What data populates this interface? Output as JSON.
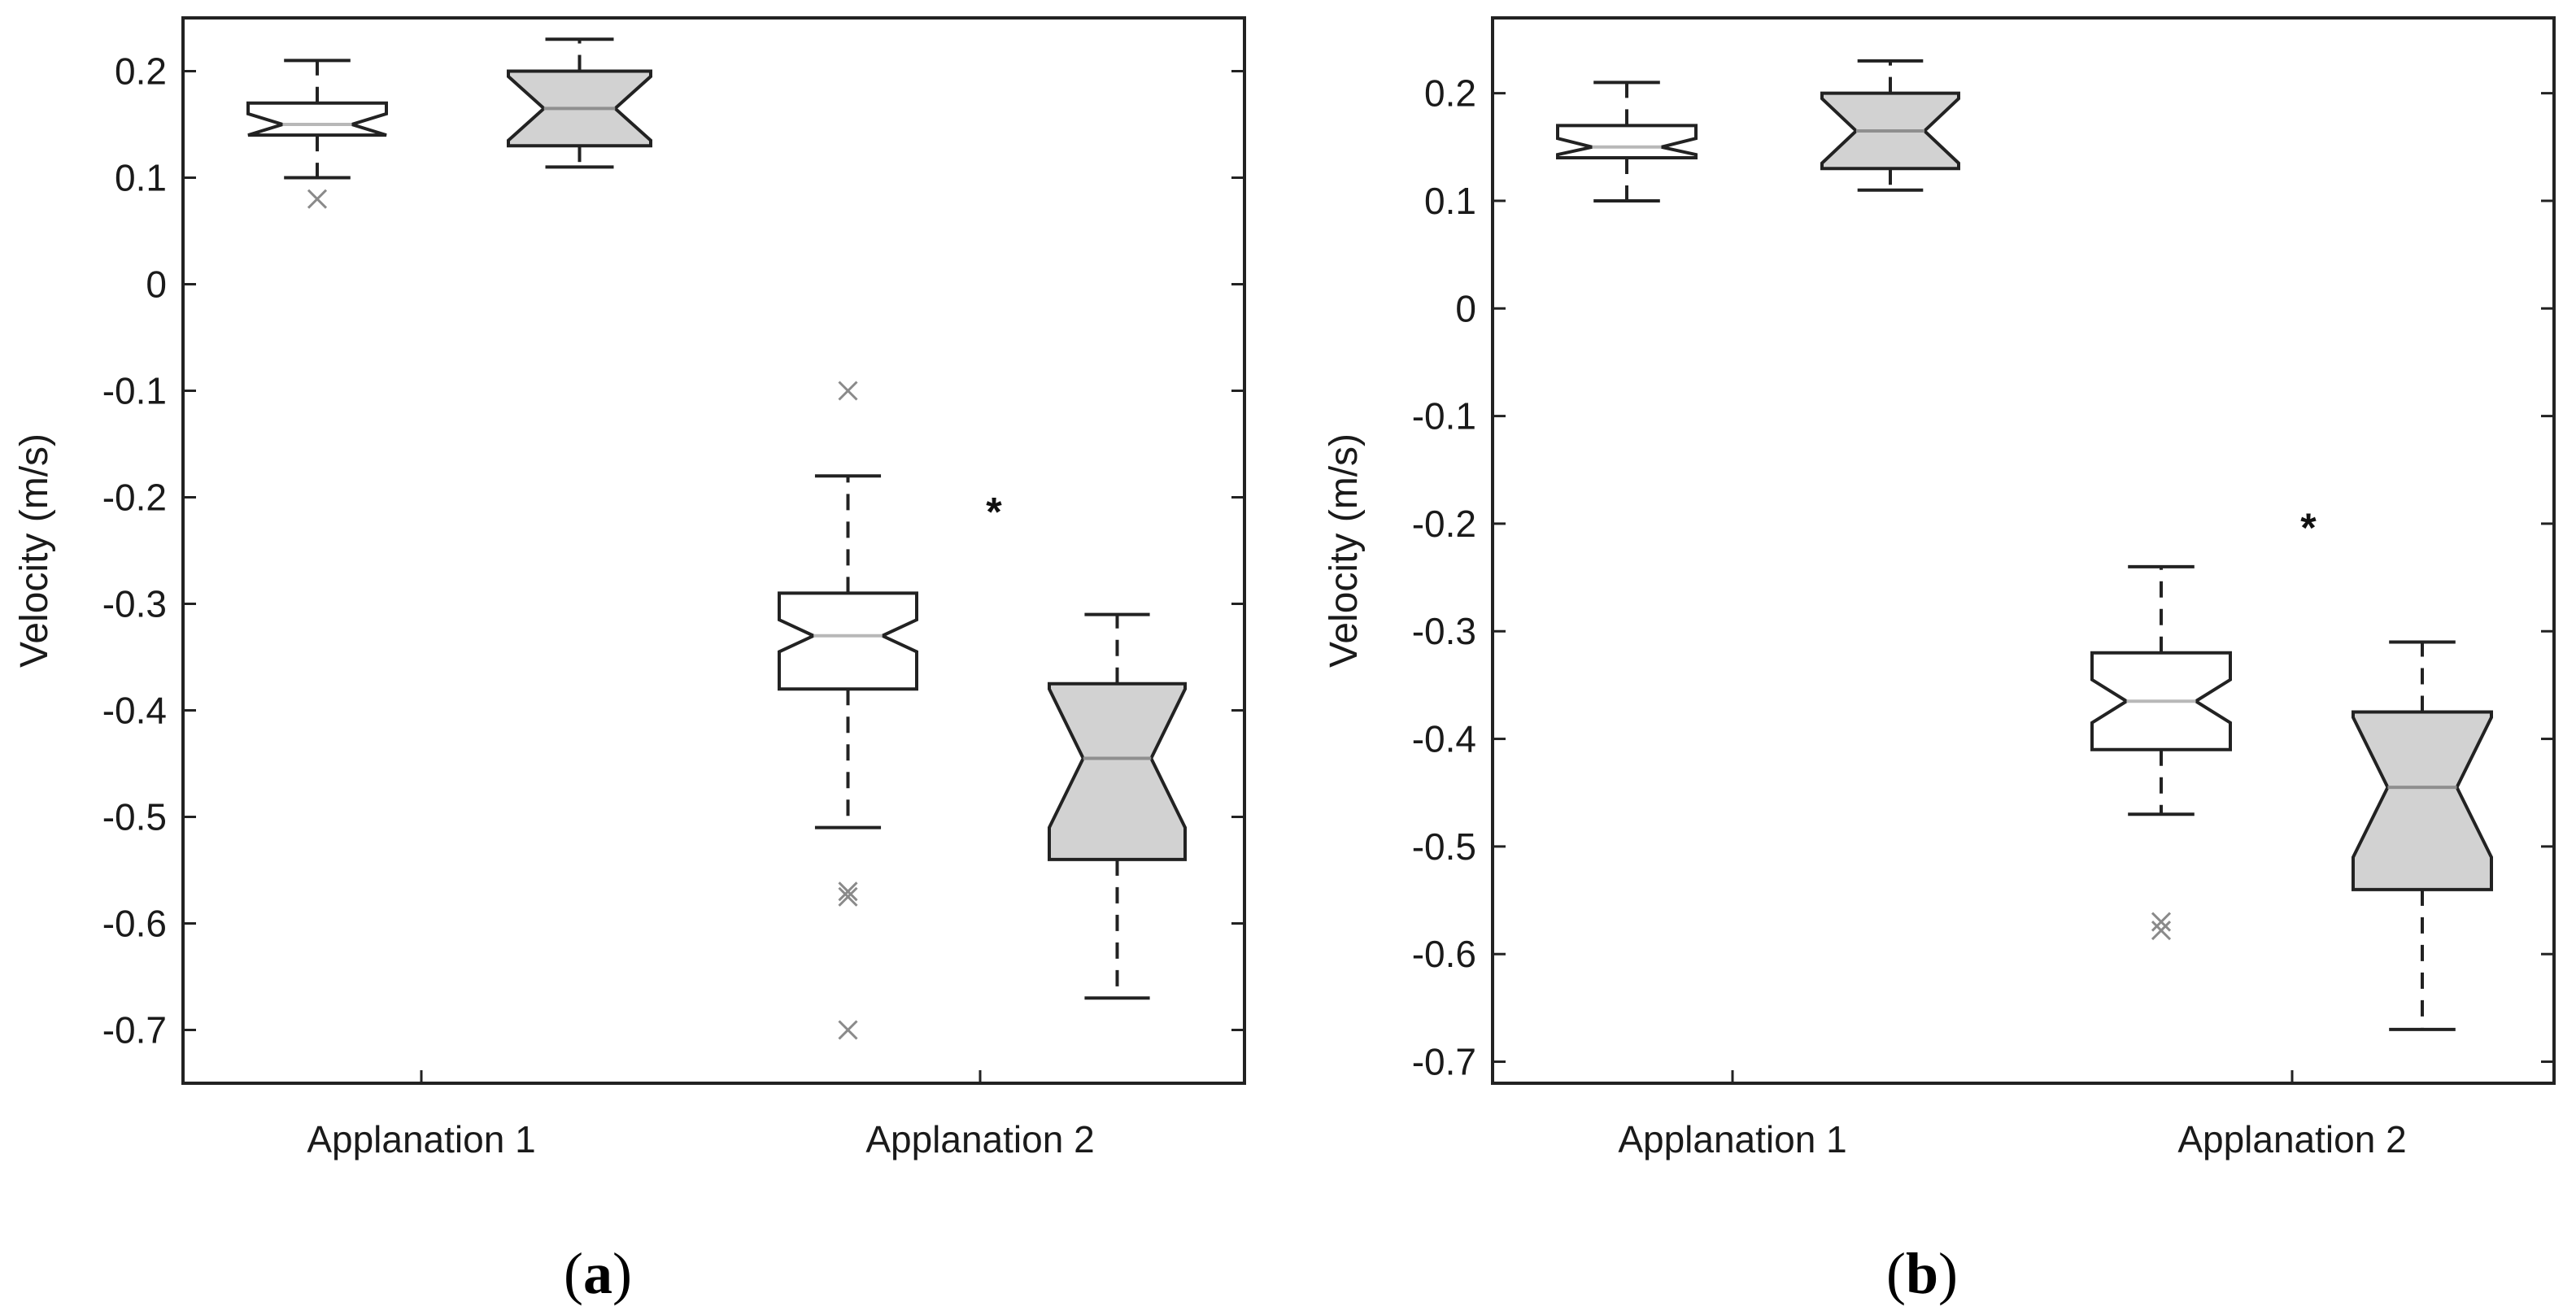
{
  "colors": {
    "axis": "#222222",
    "box_white": "#ffffff",
    "box_gray": "#d2d2d2",
    "outlier": "#8a8a8a",
    "median_white_box": "#b8b8b8",
    "median_gray_box": "#8f8f8f"
  },
  "chart_data": [
    {
      "type": "boxplot",
      "panel_label": "a",
      "ylabel": "Velocity (m/s)",
      "ylim": [
        -0.75,
        0.25
      ],
      "yticks": [
        "0.2",
        "0.1",
        "0",
        "-0.1",
        "-0.2",
        "-0.3",
        "-0.4",
        "-0.5",
        "-0.6",
        "-0.7"
      ],
      "categories": [
        "Applanation 1",
        "Applanation 2"
      ],
      "significance": [
        {
          "category": "Applanation 2",
          "label": "*"
        }
      ],
      "boxes": [
        {
          "category": "Applanation 1",
          "fill": "white",
          "whisker_low": 0.1,
          "q1": 0.14,
          "median": 0.15,
          "q3": 0.17,
          "whisker_high": 0.21,
          "notch_low": 0.14,
          "notch_high": 0.16,
          "outliers": [
            0.08
          ]
        },
        {
          "category": "Applanation 1",
          "fill": "gray",
          "whisker_low": 0.11,
          "q1": 0.13,
          "median": 0.165,
          "q3": 0.2,
          "whisker_high": 0.23,
          "notch_low": 0.135,
          "notch_high": 0.195,
          "outliers": []
        },
        {
          "category": "Applanation 2",
          "fill": "white",
          "whisker_low": -0.51,
          "q1": -0.38,
          "median": -0.33,
          "q3": -0.29,
          "whisker_high": -0.18,
          "notch_low": -0.345,
          "notch_high": -0.315,
          "outliers": [
            -0.1,
            -0.57,
            -0.575,
            -0.7
          ]
        },
        {
          "category": "Applanation 2",
          "fill": "gray",
          "whisker_low": -0.67,
          "q1": -0.54,
          "median": -0.445,
          "q3": -0.375,
          "whisker_high": -0.31,
          "notch_low": -0.51,
          "notch_high": -0.38,
          "outliers": []
        }
      ]
    },
    {
      "type": "boxplot",
      "panel_label": "b",
      "ylabel": "Velocity (m/s)",
      "ylim": [
        -0.72,
        0.27
      ],
      "yticks": [
        "0.2",
        "0.1",
        "0",
        "-0.1",
        "-0.2",
        "-0.3",
        "-0.4",
        "-0.5",
        "-0.6",
        "-0.7"
      ],
      "categories": [
        "Applanation 1",
        "Applanation 2"
      ],
      "significance": [
        {
          "category": "Applanation 2",
          "label": "*"
        }
      ],
      "boxes": [
        {
          "category": "Applanation 1",
          "fill": "white",
          "whisker_low": 0.1,
          "q1": 0.14,
          "median": 0.15,
          "q3": 0.17,
          "whisker_high": 0.21,
          "notch_low": 0.143,
          "notch_high": 0.158,
          "outliers": []
        },
        {
          "category": "Applanation 1",
          "fill": "gray",
          "whisker_low": 0.11,
          "q1": 0.13,
          "median": 0.165,
          "q3": 0.2,
          "whisker_high": 0.23,
          "notch_low": 0.135,
          "notch_high": 0.195,
          "outliers": []
        },
        {
          "category": "Applanation 2",
          "fill": "white",
          "whisker_low": -0.47,
          "q1": -0.41,
          "median": -0.365,
          "q3": -0.32,
          "whisker_high": -0.24,
          "notch_low": -0.385,
          "notch_high": -0.345,
          "outliers": [
            -0.57,
            -0.578
          ]
        },
        {
          "category": "Applanation 2",
          "fill": "gray",
          "whisker_low": -0.67,
          "q1": -0.54,
          "median": -0.445,
          "q3": -0.375,
          "whisker_high": -0.31,
          "notch_low": -0.51,
          "notch_high": -0.38,
          "outliers": []
        }
      ]
    }
  ]
}
